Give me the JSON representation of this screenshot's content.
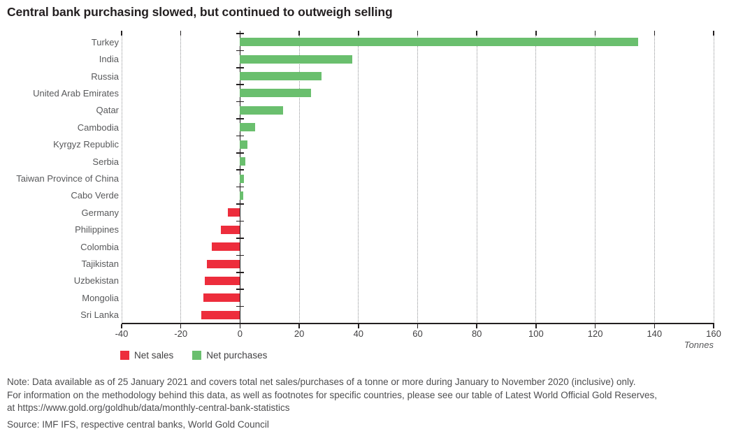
{
  "title": "Central bank purchasing slowed, but continued to outweigh selling",
  "chart_data": {
    "type": "bar",
    "orientation": "horizontal",
    "unit_label": "Tonnes",
    "x_axis": {
      "min": -40,
      "max": 160,
      "tick_interval": 20,
      "tick_labels": [
        "-40",
        "-20",
        "0",
        "20",
        "40",
        "60",
        "80",
        "100",
        "120",
        "140",
        "160"
      ],
      "gridlines": "dotted-vertical"
    },
    "categories": [
      "Turkey",
      "India",
      "Russia",
      "United Arab Emirates",
      "Qatar",
      "Cambodia",
      "Kyrgyz Republic",
      "Serbia",
      "Taiwan Province of China",
      "Cabo Verde",
      "Germany",
      "Philippines",
      "Colombia",
      "Tajikistan",
      "Uzbekistan",
      "Mongolia",
      "Sri Lanka"
    ],
    "values": [
      134.5,
      38,
      27.5,
      24,
      14.5,
      5,
      2.5,
      1.8,
      1.4,
      1.1,
      -4,
      -6.5,
      -9.6,
      -11.3,
      -11.8,
      -12.3,
      -13
    ],
    "colors": {
      "positive": "#6abf6e",
      "negative": "#ed2d3c",
      "axis": "#231f20",
      "grid": "#909295",
      "category_label": "#58595b"
    },
    "legend": [
      {
        "label": "Net sales",
        "color": "#ed2d3c"
      },
      {
        "label": "Net purchases",
        "color": "#6abf6e"
      }
    ],
    "legend_position": "bottom-left"
  },
  "footer": {
    "note_line1": "Note: Data available as of 25 January 2021 and covers total net sales/purchases of a tonne or more during January to November 2020 (inclusive) only.",
    "note_line2": "For information on the methodology behind this data, as well as footnotes for specific countries, please see our table of Latest World Official Gold Reserves,",
    "note_line3": "at https://www.gold.org/goldhub/data/monthly-central-bank-statistics",
    "source": "Source: IMF IFS, respective central banks, World Gold Council"
  }
}
